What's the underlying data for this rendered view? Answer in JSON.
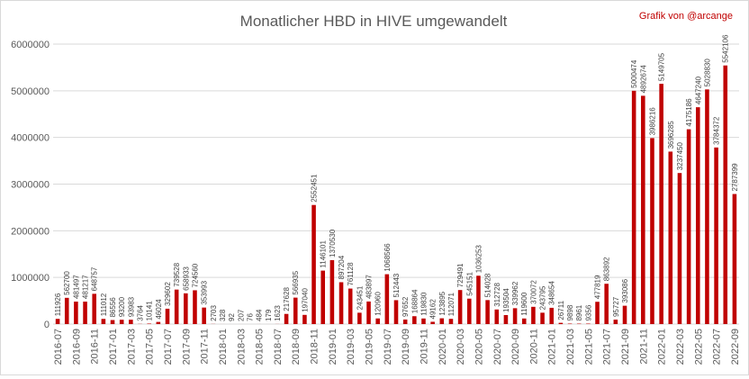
{
  "chart_data": {
    "type": "bar",
    "title": "Monatlicher HBD in HIVE umgewandelt",
    "credit": "Grafik von @arcange",
    "bar_color": "#c00000",
    "credit_color": "#c00000",
    "ylim": [
      0,
      6000000
    ],
    "y_ticks": [
      "0",
      "1000000",
      "2000000",
      "3000000",
      "4000000",
      "5000000",
      "6000000"
    ],
    "y_tick_values": [
      0,
      1000000,
      2000000,
      3000000,
      4000000,
      5000000,
      6000000
    ],
    "grid": true,
    "legend": "none",
    "categories": [
      "2016-07",
      "2016-08",
      "2016-09",
      "2016-10",
      "2016-11",
      "2016-12",
      "2017-01",
      "2017-02",
      "2017-03",
      "2017-04",
      "2017-05",
      "2017-06",
      "2017-07",
      "2017-08",
      "2017-09",
      "2017-10",
      "2017-11",
      "2017-12",
      "2018-01",
      "2018-02",
      "2018-03",
      "2018-04",
      "2018-05",
      "2018-06",
      "2018-07",
      "2018-08",
      "2018-09",
      "2018-10",
      "2018-11",
      "2018-12",
      "2019-01",
      "2019-02",
      "2019-03",
      "2019-04",
      "2019-05",
      "2019-06",
      "2019-07",
      "2019-08",
      "2019-09",
      "2019-10",
      "2019-11",
      "2019-12",
      "2020-01",
      "2020-02",
      "2020-03",
      "2020-04",
      "2020-05",
      "2020-06",
      "2020-07",
      "2020-08",
      "2020-09",
      "2020-10",
      "2020-11",
      "2020-12",
      "2021-01",
      "2021-02",
      "2021-03",
      "2021-04",
      "2021-05",
      "2021-06",
      "2021-07",
      "2021-08",
      "2021-09",
      "2021-10",
      "2021-11",
      "2021-12",
      "2022-01",
      "2022-02",
      "2022-03",
      "2022-04",
      "2022-05",
      "2022-06",
      "2022-07",
      "2022-08",
      "2022-09"
    ],
    "values": [
      111926,
      562700,
      481497,
      481217,
      648757,
      111012,
      86556,
      93200,
      93983,
      3764,
      10141,
      46024,
      329602,
      739528,
      658933,
      724560,
      353993,
      2703,
      328,
      92,
      207,
      76,
      484,
      179,
      1623,
      217628,
      566935,
      197040,
      2552451,
      1146101,
      1370530,
      897204,
      761128,
      243451,
      483897,
      120960,
      1068566,
      512443,
      97652,
      168864,
      119830,
      49162,
      123895,
      112071,
      729491,
      545151,
      1036253,
      514028,
      312728,
      193504,
      339962,
      119600,
      370072,
      243795,
      348654,
      26711,
      9898,
      8961,
      9356,
      477819,
      863892,
      95727,
      393086,
      5000474,
      4892674,
      3986216,
      5149705,
      3696285,
      3237450,
      4175186,
      4647240,
      5028830,
      3784372,
      5542106,
      2787399
    ],
    "data_labels": [
      "111926",
      "562700",
      "481497",
      "481217",
      "648757",
      "111012",
      "86556",
      "93200",
      "93983",
      "3764",
      "10141",
      "46024",
      "329602",
      "739528",
      "658933",
      "724560",
      "353993",
      "2703",
      "328",
      "92",
      "207",
      "76",
      "484",
      "179",
      "1623",
      "217628",
      "566935",
      "197040",
      "2552451",
      "1146101",
      "1370530",
      "897204",
      "761128",
      "243451",
      "483897",
      "120960",
      "1068566",
      "512443",
      "97652",
      "168864",
      "119830",
      "49162",
      "123895",
      "112071",
      "729491",
      "545151",
      "1036253",
      "514028",
      "312728",
      "193504",
      "339962",
      "119600",
      "370072",
      "243795",
      "348654",
      "26711",
      "9898",
      "8961",
      "9356",
      "477819",
      "863892",
      "95727",
      "393086",
      "5000474",
      "4892674",
      "3986216",
      "5149705",
      "3696285",
      "3237450",
      "4175186",
      "4647240",
      "5028830",
      "3784372",
      "5542106",
      "2787399"
    ],
    "x_tick_labels": [
      "2016-07",
      "",
      "2016-09",
      "",
      "2016-11",
      "",
      "2017-01",
      "",
      "2017-03",
      "",
      "2017-05",
      "",
      "2017-07",
      "",
      "2017-09",
      "",
      "2017-11",
      "",
      "2018-01",
      "",
      "2018-03",
      "",
      "2018-05",
      "",
      "2018-07",
      "",
      "2018-09",
      "",
      "2018-11",
      "",
      "2019-01",
      "",
      "2019-03",
      "",
      "2019-05",
      "",
      "2019-07",
      "",
      "2019-09",
      "",
      "2019-11",
      "",
      "2020-01",
      "",
      "2020-03",
      "",
      "2020-05",
      "",
      "2020-07",
      "",
      "2020-09",
      "",
      "2020-11",
      "",
      "2021-01",
      "",
      "2021-03",
      "",
      "2021-05",
      "",
      "2021-07",
      "",
      "2021-09",
      "",
      "2021-11",
      "",
      "2022-01",
      "",
      "2022-03",
      "",
      "2022-05",
      "",
      "2022-07",
      "",
      "2022-09"
    ]
  }
}
